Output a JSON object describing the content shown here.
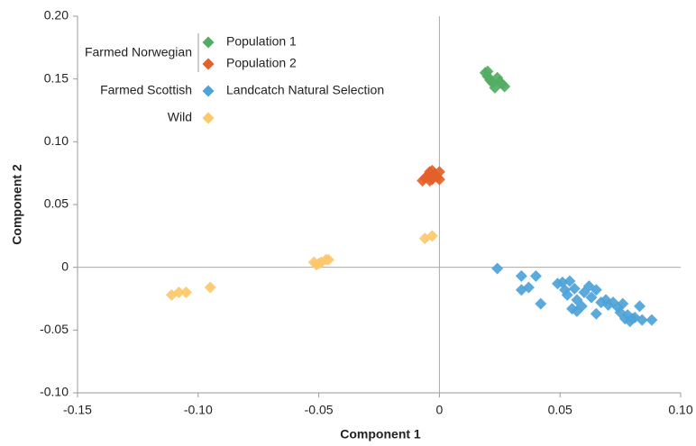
{
  "chart_data": {
    "type": "scatter",
    "x_label": "Component 1",
    "y_label": "Component 2",
    "xlim": [
      -0.15,
      0.1
    ],
    "ylim": [
      -0.1,
      0.2
    ],
    "xticks": [
      -0.15,
      {
        "value": -0.1,
        "label": "-0.10"
      },
      -0.05,
      0,
      0.05,
      {
        "value": 0.1,
        "label": "0.10"
      }
    ],
    "yticks": [
      {
        "value": -0.1,
        "label": "-0.10"
      },
      -0.05,
      0,
      0.05,
      {
        "value": 0.1,
        "label": "0.10"
      },
      0.15,
      {
        "value": 0.2,
        "label": "0.20"
      }
    ],
    "legend_groups": [
      "Farmed Norwegian",
      "Farmed Scottish"
    ],
    "series": [
      {
        "name": "Population 1",
        "color": "#52ad63",
        "x": [
          0.019,
          0.02,
          0.02,
          0.021,
          0.022,
          0.023,
          0.024,
          0.025,
          0.026,
          0.027
        ],
        "values": [
          0.155,
          0.152,
          0.156,
          0.149,
          0.147,
          0.143,
          0.151,
          0.148,
          0.146,
          0.144
        ]
      },
      {
        "name": "Population 2",
        "color": "#e5602a",
        "x": [
          -0.007,
          -0.006,
          -0.005,
          -0.004,
          -0.004,
          -0.003,
          -0.003,
          -0.002,
          -0.001,
          0.0,
          0.0
        ],
        "values": [
          0.069,
          0.071,
          0.073,
          0.076,
          0.069,
          0.077,
          0.07,
          0.074,
          0.072,
          0.076,
          0.07
        ]
      },
      {
        "name": "Landcatch Natural Selection",
        "color": "#4ea3d8",
        "x": [
          0.024,
          0.034,
          0.034,
          0.037,
          0.04,
          0.042,
          0.049,
          0.051,
          0.052,
          0.053,
          0.054,
          0.055,
          0.056,
          0.057,
          0.057,
          0.059,
          0.06,
          0.062,
          0.063,
          0.065,
          0.065,
          0.067,
          0.069,
          0.07,
          0.072,
          0.074,
          0.075,
          0.076,
          0.077,
          0.078,
          0.079,
          0.08,
          0.081,
          0.083,
          0.084,
          0.088
        ],
        "values": [
          -0.001,
          -0.007,
          -0.018,
          -0.016,
          -0.007,
          -0.029,
          -0.013,
          -0.012,
          -0.018,
          -0.022,
          -0.011,
          -0.033,
          -0.017,
          -0.026,
          -0.035,
          -0.031,
          -0.02,
          -0.015,
          -0.024,
          -0.018,
          -0.037,
          -0.028,
          -0.026,
          -0.03,
          -0.028,
          -0.032,
          -0.036,
          -0.029,
          -0.041,
          -0.038,
          -0.043,
          -0.041,
          -0.04,
          -0.031,
          -0.042,
          -0.042
        ]
      },
      {
        "name": "Wild",
        "color": "#fcc86a",
        "x": [
          -0.111,
          -0.108,
          -0.105,
          -0.095,
          -0.052,
          -0.051,
          -0.05,
          -0.049,
          -0.047,
          -0.046,
          -0.006,
          -0.003
        ],
        "values": [
          -0.022,
          -0.02,
          -0.02,
          -0.016,
          0.004,
          0.002,
          0.003,
          0.004,
          0.006,
          0.006,
          0.023,
          0.025
        ]
      }
    ]
  }
}
